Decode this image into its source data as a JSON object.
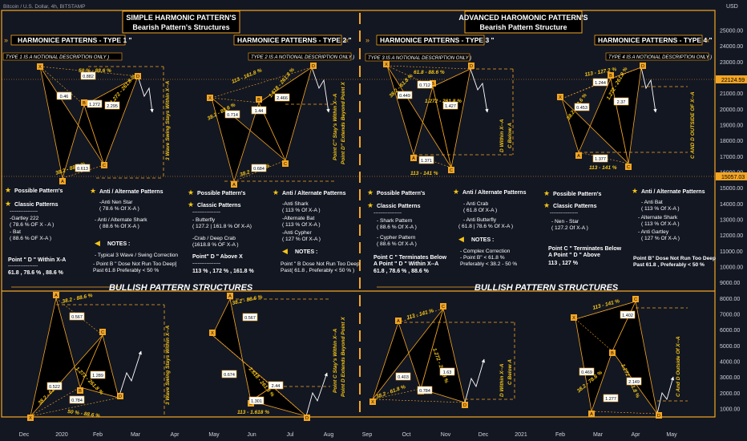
{
  "header": {
    "ticker": "Bitcoin / U.S. Dollar, 4h, BITSTAMP",
    "currency": "USD"
  },
  "titles": {
    "simple_line1": "SIMPLE HARMONIC PATTERN'S",
    "simple_line2": "Bearish Pattern's Structures",
    "advanced_line1": "ADVANCED HAROMONIC PATTERN'S",
    "advanced_line2": "Bearish Pattern Structure"
  },
  "types": [
    {
      "label": "HARMONICE PATTERNS - TYPE 1 \"",
      "note": "TYPE 1 IS A NOTIONAL DESCRIPTION ONLY )"
    },
    {
      "label": "HARMONICE PATTERNS - TYPE 2 \"",
      "note": "TYPE 2 IS A NOTIONAL DESCRIPTION ONLY )"
    },
    {
      "label": "HARMONICE PATTERNS - TYPE 3 \"",
      "note": "TYPE 3 IS A NOTIONAL DESCRIPTION ONLY )"
    },
    {
      "label": "HARMONICE PATTERNS - TYPE 4 \"",
      "note": "TYPE 4 IS A NOTIONAL DESCRIPTION ONLY )"
    }
  ],
  "descriptions": [
    {
      "possible": "Possible Pattern's",
      "classic": "Classic Patterns",
      "dashes": "----------------",
      "items": [
        "-Gartley 222",
        "( 78.6 % OF X - A )",
        "- Bat",
        "( 88.6 % OF X-A )"
      ],
      "point_d": "Point \" D \" Within X-A",
      "point_d_dashes": "-----------------",
      "values": "61.8 , 78.6 % , 88.6 %",
      "anti": "Anti / Alternate Patterns",
      "anti_items": [
        "-Anti Nen Star",
        "( 78.6 % Of X-A )",
        "",
        "- Anti / Alternate Shark",
        "( 88.6 % Of X-A )"
      ],
      "notes": "NOTES :",
      "notes_items": [
        "- Typical 3 Wave / Swing Correction",
        "- Point B \" Dose Not Run Too Deep]",
        "Past 61.8 Preferably < 50 %"
      ]
    },
    {
      "possible": "Possible Pattern's",
      "classic": "Classic Patterns",
      "dashes": "----------------",
      "items": [
        "- Butterfly",
        "( 127.2 | 161.8 % Of X-A)",
        "",
        "-Crab / Deep Crab",
        "(1618.8 % OF X-A )"
      ],
      "point_d": "Point\" D \" Above X",
      "point_d_dashes": "----------------",
      "values": "113 % , 172 % , 161.8 %",
      "anti": "Anti / Alternate Patterns",
      "anti_items": [
        "-Anti Shark",
        "( 113 % Of X-A )",
        "-Alternate Bat",
        "( 113 % Of X-A )",
        "-Anti Cypher",
        "( 127 % Of X-A )"
      ],
      "notes": "NOTES :",
      "notes_items": [
        "Point \" B Dose Not Run Too Deep",
        "Past( 61.8 , Preferably < 50 % )"
      ]
    },
    {
      "possible": "Possible Pattern's",
      "classic": "Classic Patterns",
      "dashes": "----------------",
      "items": [
        "- Shark Pattern",
        "( 88.6 % Of X-A )",
        "",
        "- Cypher Pattern",
        "( 88.6 % Of X-A )"
      ],
      "point_d": "Point C \" Terminates Below",
      "point_d2": "A Point \" D \" Within X--A",
      "values": "61.8 , 78.6 % , 88.6 %",
      "anti": "Anti / Alternate Patterns",
      "anti_items": [
        "- Anti Crab",
        "( 61.8 Of X-A )",
        "",
        "- Anti Butterfly",
        "( 61.8 | 78.6 % Of X-A )"
      ],
      "notes": "NOTES :",
      "notes_items": [
        "- Complex Correction",
        "- Point B\" < 61.8 %",
        "Preferably < 38.2 - 50 %"
      ]
    },
    {
      "possible": "Possible Pattern's",
      "classic": "Classic Patterns",
      "dashes": "----------------",
      "items": [
        "- Nen - Star",
        "( 127.2 Of X-A )"
      ],
      "point_d": "Point C \" Terminates Below",
      "point_d2": "A Point \" D \" Above",
      "values": "113 , 127 %",
      "anti": "Anti / Alternate Patterns",
      "anti_items": [
        "- Anti Bat",
        "( 113 % Of X-A )",
        "",
        "- Alternate Shark",
        "( 113 % Of X-A )",
        "",
        "- Anti Gartley",
        "( 127 % Of X-A )"
      ],
      "notes": "",
      "notes_items": [
        "Point B\" Dose Not Run Too Deep",
        "Past 61.8 , Preferably < 50 %"
      ]
    }
  ],
  "bullish_label": "BULLISH PATTERN STRUCTURES",
  "annotations": {
    "p1_top": "50 % - 88.6 %",
    "p1_mid": "38.2 - 88.6 %",
    "p1_bot": "38.2 - 88.6 %",
    "p1_cd": "1.272 - 261.8 %",
    "p1_vert": "3 Wave Swing Stays Within X--A",
    "p2_left": "113 - 161.8 %",
    "p2_mid": "38.2 - 88.6 %",
    "p2_cd": "1.618 - 261.8 %",
    "p2_bot": "38.2 - 88.6 %",
    "p2_vert1": "Point C\" Stay's Within X--A",
    "p2_vert2": "Point D\" Extends Beyond Point X",
    "p3_top": "61.8 - 88.6 %",
    "p3_left": "38.2 - 61.8 %",
    "p3_cd": "1.272 - 261.8 %",
    "p3_bot": "113 - 141 %",
    "p3_vert1": "D Within X--A",
    "p3_vert2": "C Below A",
    "p4_top": "113 - 127.2 %",
    "p4_left": "38.2 - 78.6 %",
    "p4_cd": "1.272 - 261.8 %",
    "p4_bot": "113 - 141 %",
    "p4_vert": "C AND D OUTSIDE OF X--A",
    "b1_top": "38.2 - 88.6 %",
    "b1_cd": "1.272 - 261.8 %",
    "b1_left": "38.2 - 61.8 %",
    "b1_bot": "50 % - 88.6 %",
    "b1_vert": "3 Wave Swing Stays Within X--A",
    "b2_top": "38.2 - 88.6 %",
    "b2_cd": "1.618 - 261.8 %",
    "b2_bot": "113 - 1.618 %",
    "b2_vert1": "Point C Stay's Within X--A",
    "b2_vert2": "Point D Extends Beyond Point X",
    "b3_top": "113 - 141 %",
    "b3_cd": "1.272 - 261.8 %",
    "b3_left": "38.2 - 61.8 %",
    "b3_vert1": "D Within X--A",
    "b3_vert2": "C Below A",
    "b4_top": "113 - 141 %",
    "b4_cd": "1.272 - 261.8 %",
    "b4_left": "38.2 - 78.6 %",
    "b4_vert": "C And D Outside Of X--A"
  },
  "ratios": {
    "p1": [
      "0.882",
      "0.46",
      "1.272",
      "2.295",
      "0.613"
    ],
    "p2": [
      "0.714",
      "1.44",
      "2.466",
      "0.684"
    ],
    "p3": [
      "0.449",
      "0.712",
      "1.427",
      "1.371"
    ],
    "p4": [
      "1.244",
      "0.453",
      "2.37",
      "1.377"
    ],
    "b1": [
      "0.567",
      "0.522",
      "1.289",
      "0.784"
    ],
    "b2": [
      "0.567",
      "0.674",
      "2.44",
      "1.301"
    ],
    "b3": [
      "0.403",
      "1.63",
      "0.784"
    ],
    "b4": [
      "1.402",
      "0.469",
      "2.149",
      "1.277"
    ]
  },
  "chart_data": {
    "type": "line",
    "yaxis": {
      "ticks": [
        1000,
        2000,
        3000,
        4000,
        5000,
        6000,
        7000,
        8000,
        9000,
        10000,
        11000,
        12000,
        13000,
        14000,
        15000,
        16000,
        17000,
        18000,
        19000,
        20000,
        21000,
        22000,
        23000,
        24000,
        25000
      ],
      "tick_labels": [
        "1000.00",
        "2000.00",
        "3000.00",
        "4000.00",
        "5000.00",
        "6000.00",
        "7000.00",
        "8000.00",
        "9000.00",
        "10000.00",
        "11000.00",
        "12000.00",
        "13000.00",
        "14000.00",
        "15000.00",
        "16000.00",
        "17000.00",
        "18000.00",
        "19000.00",
        "20000.00",
        "21000.00",
        "22000.00",
        "23000.00",
        "24000.00",
        "25000.00"
      ],
      "highlight_high": "22124.59",
      "highlight_low": "15057.03"
    },
    "xaxis": {
      "labels": [
        "Dec",
        "2020",
        "Feb",
        "Mar",
        "Apr",
        "May",
        "Jun",
        "Jul",
        "Aug",
        "Sep",
        "Oct",
        "Nov",
        "Dec",
        "2021",
        "Feb",
        "Mar",
        "Apr",
        "May"
      ]
    },
    "points": {
      "p1": [
        "X",
        "A",
        "B",
        "C",
        "D"
      ],
      "p2": [
        "X",
        "A",
        "B",
        "C",
        "D"
      ],
      "p3": [
        "X",
        "A",
        "B",
        "C",
        "D"
      ],
      "p4": [
        "X",
        "A",
        "B",
        "C",
        "D"
      ],
      "b1": [
        "X",
        "A",
        "B",
        "C",
        "D"
      ],
      "b2": [
        "X",
        "A",
        "B",
        "C",
        "D"
      ],
      "b3": [
        "X",
        "A",
        "B",
        "C",
        "D"
      ],
      "b4": [
        "X",
        "A",
        "B",
        "C",
        "D"
      ]
    },
    "grid": false
  }
}
